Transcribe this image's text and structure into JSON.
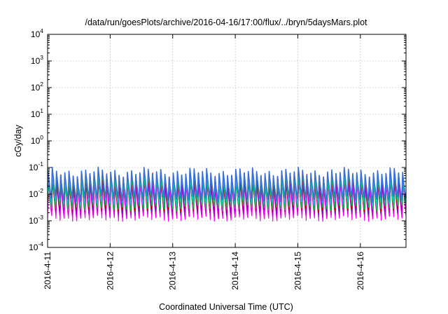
{
  "chart_data": {
    "type": "line",
    "title": "/data/run/goesPlots/archive/2016-04-16/17:00/flux/../bryn/5daysMars.plot",
    "xlabel": "Coordinated Universal Time (UTC)",
    "ylabel": "cGy/day",
    "x_scale": "time",
    "xlim": [
      "2016-04-11T00:00",
      "2016-04-16T17:30"
    ],
    "x_ticks": [
      "2016-4-11",
      "2016-4-12",
      "2016-4-13",
      "2016-4-14",
      "2016-4-15",
      "2016-4-16"
    ],
    "y_scale": "log",
    "ylim": [
      0.0001,
      10000
    ],
    "y_tick_exponents": [
      "-4",
      "-3",
      "-2",
      "-1",
      "0",
      "1",
      "2",
      "3",
      "4"
    ],
    "grid": true,
    "legend": "none",
    "cycle_period_hours": 1.6,
    "series": [
      {
        "color": "#ff00ff",
        "peak": 0.03,
        "trough": 0.0012
      },
      {
        "color": "#cc00cc",
        "peak": 0.035,
        "trough": 0.0015
      },
      {
        "color": "#8800cc",
        "peak": 0.04,
        "trough": 0.002
      },
      {
        "color": "#c80000",
        "peak": 0.045,
        "trough": 0.0025
      },
      {
        "color": "#00cc44",
        "peak": 0.05,
        "trough": 0.003
      },
      {
        "color": "#00cccc",
        "peak": 0.055,
        "trough": 0.004
      },
      {
        "color": "#3a6fd8",
        "peak": 0.07,
        "trough": 0.006
      }
    ]
  }
}
